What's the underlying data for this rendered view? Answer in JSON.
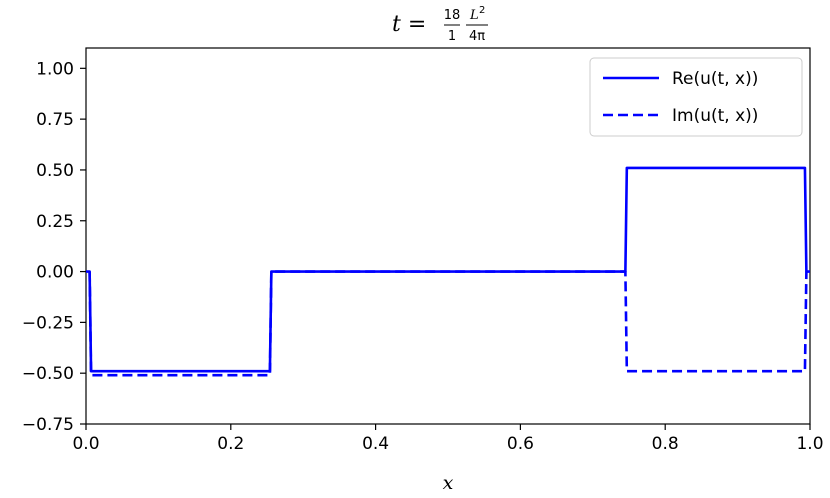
{
  "chart_data": {
    "type": "line",
    "title": {
      "prefix": "t =",
      "frac1_num": "18",
      "frac1_den": "1",
      "frac2_num": "L",
      "frac2_num_sup": "2",
      "frac2_den": "4π"
    },
    "xlabel": "x",
    "ylabel": "",
    "xlim": [
      0.0,
      1.0
    ],
    "ylim": [
      -0.75,
      1.1
    ],
    "x_ticks": [
      "0.0",
      "0.2",
      "0.4",
      "0.6",
      "0.8",
      "1.0"
    ],
    "x_tick_values": [
      0.0,
      0.2,
      0.4,
      0.6,
      0.8,
      1.0
    ],
    "y_ticks": [
      "−0.75",
      "−0.50",
      "−0.25",
      "0.00",
      "0.25",
      "0.50",
      "0.75",
      "1.00"
    ],
    "y_tick_values": [
      -0.75,
      -0.5,
      -0.25,
      0.0,
      0.25,
      0.5,
      0.75,
      1.0
    ],
    "grid": false,
    "legend_position": "top-right",
    "series": [
      {
        "name": "Re(u(t, x))",
        "style": "solid",
        "color": "#0000ff",
        "x": [
          0.0,
          0.005,
          0.007,
          0.254,
          0.256,
          0.745,
          0.747,
          0.993,
          0.995,
          1.0
        ],
        "y": [
          0.0,
          0.0,
          -0.49,
          -0.49,
          0.0,
          0.0,
          0.51,
          0.51,
          0.0,
          0.0
        ]
      },
      {
        "name": "Im(u(t, x))",
        "style": "dashed",
        "color": "#0000ff",
        "x": [
          0.005,
          0.007,
          0.254,
          0.256,
          0.745,
          0.747,
          0.993,
          0.995
        ],
        "y": [
          0.0,
          -0.51,
          -0.51,
          0.0,
          0.0,
          -0.49,
          -0.49,
          0.0
        ]
      }
    ]
  }
}
